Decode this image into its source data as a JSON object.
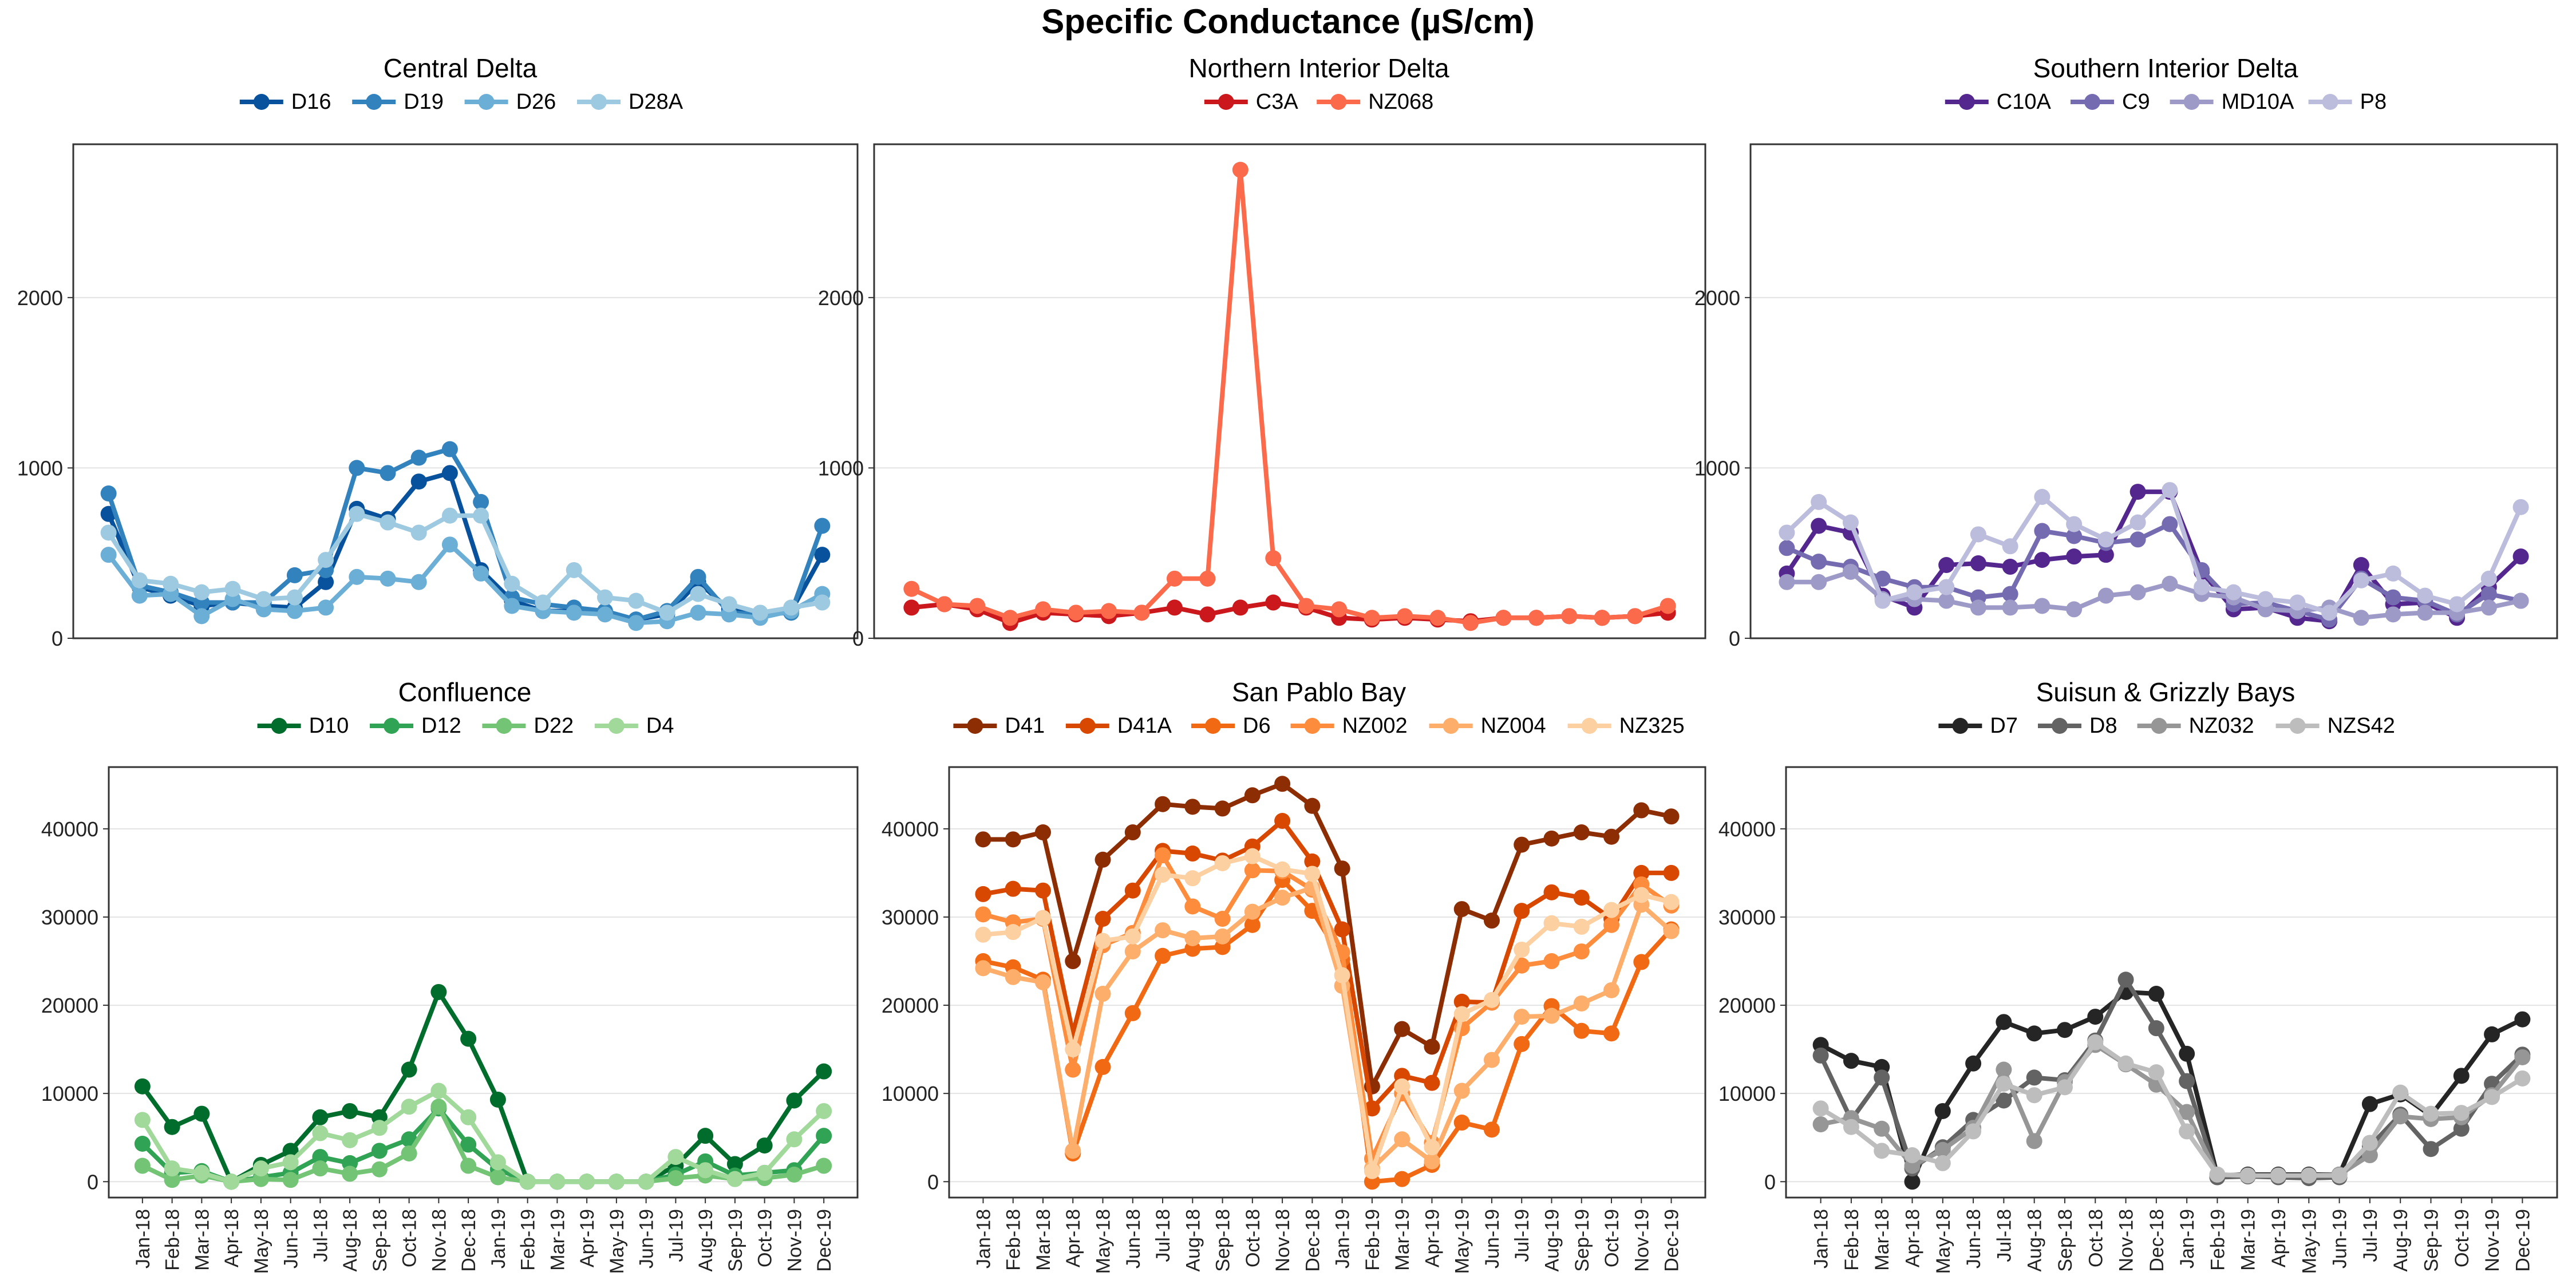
{
  "title": "Specific Conductance (µS/cm)",
  "months": [
    "Jan-18",
    "Feb-18",
    "Mar-18",
    "Apr-18",
    "May-18",
    "Jun-18",
    "Jul-18",
    "Aug-18",
    "Sep-18",
    "Oct-18",
    "Nov-18",
    "Dec-18",
    "Jan-19",
    "Feb-19",
    "Mar-19",
    "Apr-19",
    "May-19",
    "Jun-19",
    "Jul-19",
    "Aug-19",
    "Sep-19",
    "Oct-19",
    "Nov-19",
    "Dec-19"
  ],
  "chart_data": [
    {
      "type": "line",
      "title": "Central Delta",
      "x": [
        "Jan-18",
        "Feb-18",
        "Mar-18",
        "Apr-18",
        "May-18",
        "Jun-18",
        "Jul-18",
        "Aug-18",
        "Sep-18",
        "Oct-18",
        "Nov-18",
        "Dec-18",
        "Jan-19",
        "Feb-19",
        "Mar-19",
        "Apr-19",
        "May-19",
        "Jun-19",
        "Jul-19",
        "Aug-19",
        "Sep-19",
        "Oct-19",
        "Nov-19",
        "Dec-19"
      ],
      "ylim": [
        0,
        2900
      ],
      "yticks": [
        "0",
        "1000",
        "2000"
      ],
      "yticks_values": [
        0,
        1000,
        2000
      ],
      "legend_position": "top",
      "series": [
        {
          "name": "D16",
          "color": "#08519c",
          "values": [
            730,
            300,
            250,
            190,
            210,
            190,
            180,
            330,
            760,
            700,
            920,
            970,
            400,
            220,
            160,
            160,
            150,
            110,
            140,
            330,
            170,
            140,
            160,
            490
          ]
        },
        {
          "name": "D19",
          "color": "#3182bd",
          "values": [
            850,
            310,
            270,
            210,
            210,
            210,
            370,
            400,
            1000,
            970,
            1060,
            1110,
            800,
            240,
            200,
            180,
            160,
            110,
            160,
            360,
            150,
            140,
            150,
            660
          ]
        },
        {
          "name": "D26",
          "color": "#6baed6",
          "values": [
            490,
            250,
            260,
            130,
            230,
            170,
            160,
            180,
            360,
            350,
            330,
            550,
            380,
            190,
            160,
            150,
            140,
            90,
            100,
            150,
            140,
            120,
            160,
            260
          ]
        },
        {
          "name": "D28A",
          "color": "#9ecae1",
          "values": [
            620,
            340,
            320,
            270,
            290,
            230,
            240,
            460,
            730,
            680,
            620,
            720,
            720,
            320,
            210,
            400,
            240,
            220,
            150,
            260,
            200,
            150,
            180,
            210
          ]
        }
      ]
    },
    {
      "type": "line",
      "title": "Northern Interior Delta",
      "x": [
        "Jan-18",
        "Feb-18",
        "Mar-18",
        "Apr-18",
        "May-18",
        "Jun-18",
        "Jul-18",
        "Aug-18",
        "Sep-18",
        "Oct-18",
        "Nov-18",
        "Dec-18",
        "Jan-19",
        "Feb-19",
        "Mar-19",
        "Apr-19",
        "May-19",
        "Jun-19",
        "Jul-19",
        "Aug-19",
        "Sep-19",
        "Oct-19",
        "Nov-19",
        "Dec-19"
      ],
      "ylim": [
        0,
        2900
      ],
      "yticks": [
        "0",
        "1000",
        "2000"
      ],
      "yticks_values": [
        0,
        1000,
        2000
      ],
      "legend_position": "top",
      "series": [
        {
          "name": "C3A",
          "color": "#cb181d",
          "values": [
            180,
            200,
            170,
            90,
            150,
            140,
            130,
            150,
            180,
            140,
            180,
            210,
            180,
            120,
            110,
            120,
            110,
            100,
            120,
            120,
            130,
            120,
            130,
            150
          ]
        },
        {
          "name": "NZ068",
          "color": "#fb6a4a",
          "values": [
            290,
            200,
            190,
            120,
            170,
            150,
            160,
            150,
            350,
            350,
            2750,
            470,
            190,
            170,
            120,
            130,
            120,
            90,
            120,
            120,
            130,
            120,
            130,
            190
          ]
        }
      ]
    },
    {
      "type": "line",
      "title": "Southern Interior Delta",
      "x": [
        "Jan-18",
        "Feb-18",
        "Mar-18",
        "Apr-18",
        "May-18",
        "Jun-18",
        "Jul-18",
        "Aug-18",
        "Sep-18",
        "Oct-18",
        "Nov-18",
        "Dec-18",
        "Jan-19",
        "Feb-19",
        "Mar-19",
        "Apr-19",
        "May-19",
        "Jun-19",
        "Jul-19",
        "Aug-19",
        "Sep-19",
        "Oct-19",
        "Nov-19",
        "Dec-19"
      ],
      "ylim": [
        0,
        2900
      ],
      "yticks": [
        "0",
        "1000",
        "2000"
      ],
      "yticks_values": [
        0,
        1000,
        2000
      ],
      "legend_position": "top",
      "series": [
        {
          "name": "C10A",
          "color": "#54278f",
          "values": [
            380,
            660,
            620,
            250,
            180,
            430,
            440,
            420,
            460,
            480,
            490,
            860,
            860,
            390,
            170,
            180,
            120,
            100,
            430,
            200,
            210,
            120,
            300,
            480
          ]
        },
        {
          "name": "C9",
          "color": "#756bb1",
          "values": [
            530,
            450,
            420,
            350,
            300,
            300,
            240,
            260,
            630,
            600,
            560,
            580,
            670,
            400,
            200,
            210,
            160,
            110,
            350,
            240,
            220,
            140,
            260,
            220
          ]
        },
        {
          "name": "MD10A",
          "color": "#9e9ac8",
          "values": [
            330,
            330,
            390,
            230,
            230,
            220,
            180,
            180,
            190,
            170,
            250,
            270,
            320,
            260,
            240,
            170,
            160,
            180,
            120,
            140,
            150,
            150,
            180,
            220
          ]
        },
        {
          "name": "P8",
          "color": "#bcbddc",
          "values": [
            620,
            800,
            680,
            220,
            270,
            300,
            610,
            540,
            830,
            670,
            580,
            680,
            870,
            300,
            270,
            230,
            210,
            150,
            340,
            380,
            250,
            200,
            350,
            770
          ]
        }
      ]
    },
    {
      "type": "line",
      "title": "Confluence",
      "x": [
        "Jan-18",
        "Feb-18",
        "Mar-18",
        "Apr-18",
        "May-18",
        "Jun-18",
        "Jul-18",
        "Aug-18",
        "Sep-18",
        "Oct-18",
        "Nov-18",
        "Dec-18",
        "Jan-19",
        "Feb-19",
        "Mar-19",
        "Apr-19",
        "May-19",
        "Jun-19",
        "Jul-19",
        "Aug-19",
        "Sep-19",
        "Oct-19",
        "Nov-19",
        "Dec-19"
      ],
      "ylim": [
        -1800,
        47000
      ],
      "yticks": [
        "0",
        "10000",
        "20000",
        "30000",
        "40000"
      ],
      "yticks_values": [
        0,
        10000,
        20000,
        30000,
        40000
      ],
      "legend_position": "top",
      "series": [
        {
          "name": "D10",
          "color": "#006d2c",
          "values": [
            10800,
            6200,
            7700,
            0,
            1900,
            3500,
            7300,
            8000,
            7300,
            12700,
            21500,
            16200,
            9300,
            0,
            0,
            0,
            0,
            0,
            1800,
            5200,
            2000,
            4100,
            9200,
            12500
          ]
        },
        {
          "name": "D12",
          "color": "#31a354",
          "values": [
            4300,
            1000,
            1200,
            0,
            500,
            1000,
            2800,
            2100,
            3500,
            4800,
            8300,
            4200,
            1400,
            0,
            0,
            0,
            0,
            0,
            800,
            2300,
            700,
            1000,
            1300,
            5200
          ]
        },
        {
          "name": "D22",
          "color": "#74c476",
          "values": [
            1800,
            200,
            700,
            0,
            300,
            200,
            1500,
            900,
            1400,
            3200,
            8500,
            1800,
            500,
            0,
            0,
            0,
            0,
            0,
            400,
            700,
            300,
            400,
            800,
            1800
          ]
        },
        {
          "name": "D4",
          "color": "#a1d99b",
          "values": [
            7000,
            1500,
            1000,
            0,
            1500,
            2200,
            5500,
            4700,
            6100,
            8500,
            10300,
            7300,
            2200,
            0,
            0,
            0,
            0,
            0,
            2800,
            1300,
            300,
            1000,
            4800,
            8000
          ]
        }
      ]
    },
    {
      "type": "line",
      "title": "San Pablo Bay",
      "x": [
        "Jan-18",
        "Feb-18",
        "Mar-18",
        "Apr-18",
        "May-18",
        "Jun-18",
        "Jul-18",
        "Aug-18",
        "Sep-18",
        "Oct-18",
        "Nov-18",
        "Dec-18",
        "Jan-19",
        "Feb-19",
        "Mar-19",
        "Apr-19",
        "May-19",
        "Jun-19",
        "Jul-19",
        "Aug-19",
        "Sep-19",
        "Oct-19",
        "Nov-19",
        "Dec-19"
      ],
      "ylim": [
        -1800,
        47000
      ],
      "yticks": [
        "0",
        "10000",
        "20000",
        "30000",
        "40000"
      ],
      "yticks_values": [
        0,
        10000,
        20000,
        30000,
        40000
      ],
      "legend_position": "top",
      "series": [
        {
          "name": "D41",
          "color": "#8c2d04",
          "values": [
            38800,
            38800,
            39600,
            25000,
            36500,
            39600,
            42800,
            42500,
            42300,
            43800,
            45100,
            42600,
            35500,
            10800,
            17300,
            15300,
            30900,
            29600,
            38200,
            38900,
            39600,
            39100,
            42100,
            41400
          ]
        },
        {
          "name": "D41A",
          "color": "#d94801",
          "values": [
            32600,
            33200,
            33000,
            16800,
            29800,
            33000,
            37500,
            37200,
            36400,
            38000,
            40900,
            36300,
            28600,
            8300,
            12000,
            11200,
            20400,
            20300,
            30700,
            32800,
            32200,
            29800,
            35000,
            35000
          ]
        },
        {
          "name": "D6",
          "color": "#f16913",
          "values": [
            25000,
            24300,
            22900,
            3200,
            13000,
            19100,
            25600,
            26400,
            26600,
            29100,
            34200,
            30700,
            25200,
            0,
            300,
            1900,
            6700,
            5900,
            15600,
            19900,
            17100,
            16800,
            24900,
            28600
          ]
        },
        {
          "name": "NZ002",
          "color": "#fd8d3c",
          "values": [
            30300,
            29400,
            29800,
            12700,
            26800,
            28200,
            37000,
            31200,
            29800,
            35300,
            35200,
            33100,
            26000,
            2600,
            10000,
            4400,
            17400,
            20300,
            24500,
            25000,
            26100,
            29100,
            33700,
            31300
          ]
        },
        {
          "name": "NZ004",
          "color": "#fdae6b",
          "values": [
            24200,
            23200,
            22600,
            3500,
            21300,
            26100,
            28500,
            27600,
            27800,
            30600,
            32200,
            33300,
            22200,
            1500,
            4800,
            2300,
            10300,
            13800,
            18700,
            18800,
            20200,
            21700,
            31400,
            28400
          ]
        },
        {
          "name": "NZ325",
          "color": "#fdd0a2",
          "values": [
            28000,
            28300,
            29900,
            15000,
            27300,
            27800,
            34800,
            34400,
            36100,
            36900,
            35400,
            34900,
            23400,
            1200,
            10800,
            3900,
            19000,
            20600,
            26300,
            29300,
            28900,
            30800,
            32500,
            31700
          ]
        }
      ]
    },
    {
      "type": "line",
      "title": "Suisun & Grizzly Bays",
      "x": [
        "Jan-18",
        "Feb-18",
        "Mar-18",
        "Apr-18",
        "May-18",
        "Jun-18",
        "Jul-18",
        "Aug-18",
        "Sep-18",
        "Oct-18",
        "Nov-18",
        "Dec-18",
        "Jan-19",
        "Feb-19",
        "Mar-19",
        "Apr-19",
        "May-19",
        "Jun-19",
        "Jul-19",
        "Aug-19",
        "Sep-19",
        "Oct-19",
        "Nov-19",
        "Dec-19"
      ],
      "ylim": [
        -1800,
        47000
      ],
      "yticks": [
        "0",
        "10000",
        "20000",
        "30000",
        "40000"
      ],
      "yticks_values": [
        0,
        10000,
        20000,
        30000,
        40000
      ],
      "legend_position": "top",
      "series": [
        {
          "name": "D7",
          "color": "#252525",
          "values": [
            15500,
            13700,
            13000,
            0,
            8000,
            13400,
            18100,
            16800,
            17200,
            18700,
            21500,
            21300,
            14500,
            700,
            800,
            800,
            800,
            800,
            8800,
            9900,
            7500,
            12000,
            16700,
            18400
          ]
        },
        {
          "name": "D8",
          "color": "#636363",
          "values": [
            14300,
            7000,
            11800,
            1500,
            3900,
            7000,
            9200,
            11800,
            11500,
            16000,
            22900,
            17400,
            11400,
            500,
            600,
            500,
            400,
            500,
            4000,
            7600,
            3700,
            6000,
            11100,
            14400
          ]
        },
        {
          "name": "NZ032",
          "color": "#969696",
          "values": [
            6500,
            7200,
            6000,
            1800,
            3600,
            6100,
            12700,
            4600,
            11300,
            15500,
            13300,
            11000,
            7900,
            800,
            700,
            700,
            700,
            800,
            3000,
            7400,
            7100,
            7300,
            9800,
            14100
          ]
        },
        {
          "name": "NZS42",
          "color": "#bdbdbd",
          "values": [
            8300,
            6200,
            3500,
            3000,
            2100,
            5700,
            11100,
            9800,
            10700,
            15800,
            13400,
            12400,
            5700,
            800,
            700,
            700,
            700,
            700,
            4400,
            10100,
            7700,
            7800,
            9600,
            11700
          ]
        }
      ]
    }
  ]
}
